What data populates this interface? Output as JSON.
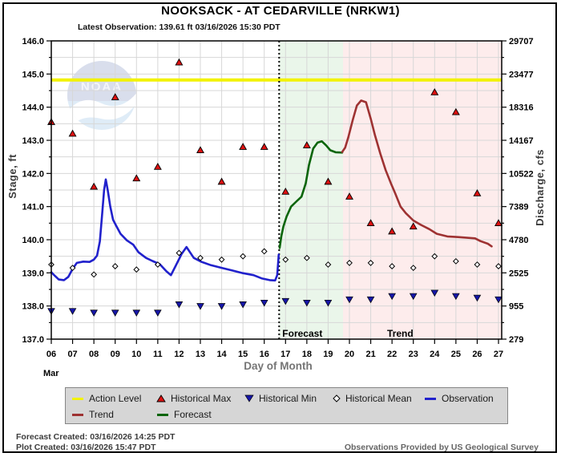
{
  "title": "NOOKSACK - AT CEDARVILLE  (NRKW1)",
  "subtitle": "Latest Observation: 139.61 ft 03/16/2026 15:30 PDT",
  "latest_observation": {
    "stage_ft": 139.61,
    "datetime": "03/16/2026 15:30 PDT"
  },
  "watermark": "NOAA",
  "footer": {
    "forecast_created": "Forecast Created: 03/16/2026 14:25 PDT",
    "plot_created": "Plot Created: 03/16/2026 15:47 PDT",
    "provider": "Observations Provided by US Geological Survey"
  },
  "legend": {
    "rows": [
      [
        {
          "label": "Action Level",
          "swatch": "line",
          "color": "#f2f200"
        },
        {
          "label": "Historical Max",
          "swatch": "triangle-up",
          "color": "#dd1111"
        },
        {
          "label": "Historical Min",
          "swatch": "triangle-down",
          "color": "#1616a8"
        },
        {
          "label": "Historical Mean",
          "swatch": "diamond",
          "color": "#ffffff"
        },
        {
          "label": "Observation",
          "swatch": "line",
          "color": "#2121cc"
        }
      ],
      [
        {
          "label": "Trend",
          "swatch": "line",
          "color": "#9e3232"
        },
        {
          "label": "Forecast",
          "swatch": "line",
          "color": "#0a650a"
        }
      ]
    ]
  },
  "chart_data": {
    "type": "line",
    "title": "NOOKSACK - AT CEDARVILLE  (NRKW1)",
    "x_axis": {
      "label": "Day of Month",
      "month": "Mar",
      "min": 6,
      "max": 27.15,
      "tick_days": [
        6,
        7,
        8,
        9,
        10,
        11,
        12,
        13,
        14,
        15,
        16,
        17,
        18,
        19,
        20,
        21,
        22,
        23,
        24,
        25,
        26,
        27
      ],
      "tick_labels": [
        "06",
        "07",
        "08",
        "09",
        "10",
        "11",
        "12",
        "13",
        "14",
        "15",
        "16",
        "17",
        "18",
        "19",
        "20",
        "21",
        "22",
        "23",
        "24",
        "25",
        "26",
        "27"
      ]
    },
    "stage_axis": {
      "label": "Stage, ft",
      "min": 137.0,
      "max": 146.0,
      "minor_step": 0.5,
      "ticks": [
        146.0,
        145.0,
        144.0,
        143.0,
        142.0,
        141.0,
        140.0,
        139.0,
        138.0,
        137.0
      ],
      "tick_labels": [
        "146.0",
        "145.0",
        "144.0",
        "143.0",
        "142.0",
        "141.0",
        "140.0",
        "139.0",
        "138.0",
        "137.0"
      ]
    },
    "discharge_axis": {
      "label": "Discharge, cfs",
      "tick_labels": [
        "29707",
        "23477",
        "18316",
        "14167",
        "10522",
        "7389",
        "4780",
        "2525",
        "955",
        "279"
      ]
    },
    "action_level": {
      "label": "Action Level",
      "stage": 144.82,
      "color": "#f2f200"
    },
    "separator_day": 16.7,
    "grid": {
      "on": true,
      "color": "#d7d7d7"
    },
    "regions": {
      "forecast": {
        "label": "Forecast",
        "start_day": 16.7,
        "end_day": 19.7,
        "color": "#eaf6ea"
      },
      "trend": {
        "label": "Trend",
        "start_day": 19.7,
        "end_day": 27.15,
        "color": "#fdecec"
      }
    },
    "series": {
      "observation": {
        "name": "Observation",
        "color": "#2121cc",
        "points": [
          [
            6.0,
            139.02
          ],
          [
            6.15,
            138.92
          ],
          [
            6.35,
            138.8
          ],
          [
            6.6,
            138.78
          ],
          [
            6.8,
            138.88
          ],
          [
            7.0,
            139.12
          ],
          [
            7.2,
            139.3
          ],
          [
            7.5,
            139.34
          ],
          [
            7.8,
            139.33
          ],
          [
            8.0,
            139.4
          ],
          [
            8.15,
            139.52
          ],
          [
            8.28,
            139.95
          ],
          [
            8.38,
            140.7
          ],
          [
            8.48,
            141.5
          ],
          [
            8.56,
            141.82
          ],
          [
            8.65,
            141.5
          ],
          [
            8.77,
            141.0
          ],
          [
            8.9,
            140.6
          ],
          [
            9.05,
            140.42
          ],
          [
            9.25,
            140.18
          ],
          [
            9.55,
            139.98
          ],
          [
            9.85,
            139.85
          ],
          [
            10.1,
            139.62
          ],
          [
            10.45,
            139.45
          ],
          [
            10.75,
            139.36
          ],
          [
            11.1,
            139.26
          ],
          [
            11.4,
            139.05
          ],
          [
            11.62,
            138.93
          ],
          [
            11.87,
            139.25
          ],
          [
            12.12,
            139.57
          ],
          [
            12.35,
            139.78
          ],
          [
            12.69,
            139.45
          ],
          [
            13.06,
            139.33
          ],
          [
            13.5,
            139.23
          ],
          [
            14.0,
            139.15
          ],
          [
            14.5,
            139.07
          ],
          [
            15.0,
            138.99
          ],
          [
            15.5,
            138.93
          ],
          [
            15.9,
            138.83
          ],
          [
            16.26,
            138.78
          ],
          [
            16.51,
            138.77
          ],
          [
            16.61,
            138.93
          ],
          [
            16.68,
            139.55
          ]
        ]
      },
      "forecast": {
        "name": "Forecast",
        "color": "#0a650a",
        "points": [
          [
            16.72,
            139.75
          ],
          [
            16.8,
            140.1
          ],
          [
            16.9,
            140.4
          ],
          [
            17.05,
            140.7
          ],
          [
            17.26,
            141.0
          ],
          [
            17.5,
            141.15
          ],
          [
            17.75,
            141.3
          ],
          [
            17.95,
            141.7
          ],
          [
            18.1,
            142.25
          ],
          [
            18.3,
            142.75
          ],
          [
            18.5,
            142.93
          ],
          [
            18.7,
            142.97
          ],
          [
            18.9,
            142.85
          ],
          [
            19.1,
            142.7
          ],
          [
            19.35,
            142.64
          ],
          [
            19.66,
            142.63
          ]
        ]
      },
      "trend": {
        "name": "Trend",
        "color": "#9e3232",
        "points": [
          [
            19.66,
            142.65
          ],
          [
            19.8,
            142.78
          ],
          [
            19.95,
            143.1
          ],
          [
            20.15,
            143.6
          ],
          [
            20.35,
            144.05
          ],
          [
            20.55,
            144.2
          ],
          [
            20.78,
            144.15
          ],
          [
            21.0,
            143.65
          ],
          [
            21.2,
            143.15
          ],
          [
            21.45,
            142.6
          ],
          [
            21.7,
            142.1
          ],
          [
            21.95,
            141.7
          ],
          [
            22.15,
            141.4
          ],
          [
            22.4,
            141.0
          ],
          [
            22.65,
            140.8
          ],
          [
            23.0,
            140.58
          ],
          [
            23.35,
            140.45
          ],
          [
            23.75,
            140.32
          ],
          [
            24.1,
            140.18
          ],
          [
            24.6,
            140.1
          ],
          [
            25.1,
            140.08
          ],
          [
            25.9,
            140.04
          ],
          [
            26.15,
            139.96
          ],
          [
            26.5,
            139.88
          ],
          [
            26.68,
            139.8
          ]
        ]
      },
      "historical_max": {
        "name": "Historical Max",
        "color": "#dd1111",
        "days": [
          6,
          7,
          8,
          9,
          10,
          11,
          12,
          13,
          14,
          15,
          16,
          17,
          18,
          19,
          20,
          21,
          22,
          23,
          24,
          25,
          26,
          27
        ],
        "values": [
          143.55,
          143.2,
          141.6,
          144.3,
          141.85,
          142.2,
          145.35,
          142.7,
          141.75,
          142.8,
          142.8,
          141.45,
          142.85,
          141.75,
          141.3,
          140.5,
          140.25,
          140.4,
          144.45,
          143.85,
          141.4,
          140.5
        ]
      },
      "historical_min": {
        "name": "Historical Min",
        "color": "#1616a8",
        "days": [
          6,
          7,
          8,
          9,
          10,
          11,
          12,
          13,
          14,
          15,
          16,
          17,
          18,
          19,
          20,
          21,
          22,
          23,
          24,
          25,
          26,
          27
        ],
        "values": [
          137.85,
          137.85,
          137.8,
          137.8,
          137.8,
          137.8,
          138.05,
          138.0,
          138.0,
          138.05,
          138.1,
          138.15,
          138.1,
          138.1,
          138.2,
          138.2,
          138.3,
          138.3,
          138.4,
          138.3,
          138.25,
          138.2
        ]
      },
      "historical_mean": {
        "name": "Historical Mean",
        "color": "#ffffff",
        "days": [
          6,
          7,
          8,
          9,
          10,
          11,
          12,
          13,
          14,
          15,
          16,
          17,
          18,
          19,
          20,
          21,
          22,
          23,
          24,
          25,
          26,
          27
        ],
        "values": [
          139.25,
          139.15,
          138.95,
          139.2,
          139.1,
          139.25,
          139.6,
          139.45,
          139.4,
          139.5,
          139.65,
          139.4,
          139.45,
          139.25,
          139.3,
          139.3,
          139.2,
          139.15,
          139.5,
          139.35,
          139.25,
          139.2
        ]
      }
    }
  }
}
